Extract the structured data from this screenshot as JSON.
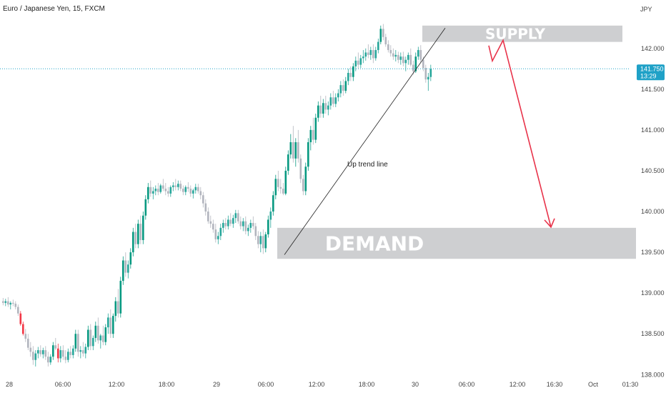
{
  "chart_data": {
    "type": "candlestick",
    "title": "Euro / Japanese Yen, 15, FXCM",
    "currency": "JPY",
    "ylim": [
      137.95,
      142.55
    ],
    "y_ticks": [
      "142.000",
      "141.500",
      "141.000",
      "140.500",
      "140.000",
      "139.500",
      "139.000",
      "138.500",
      "138.000"
    ],
    "x_ticks": [
      "28",
      "06:00",
      "12:00",
      "18:00",
      "29",
      "06:00",
      "12:00",
      "18:00",
      "30",
      "06:00",
      "12:00",
      "16:30",
      "Oct",
      "01:30"
    ],
    "last_price": "141.750",
    "countdown": "13:29",
    "zones": [
      {
        "name": "SUPPLY",
        "low": 142.08,
        "high": 142.28
      },
      {
        "name": "DEMAND",
        "low": 139.42,
        "high": 139.8
      }
    ],
    "annotations": [
      "Up trend line"
    ],
    "trendline": {
      "from": 139.47,
      "to": 142.25
    },
    "projection": {
      "from": 142.0,
      "pullback": 142.1,
      "to": 139.8
    },
    "colors": {
      "up": "#26a69a",
      "up_strong": "#089981",
      "down": "#b2b5be",
      "down_strong": "#f23645",
      "projection": "#e8334a",
      "zone": "#c9cacc",
      "price_line": "#23a6c7",
      "price_tag": "#1fa1c7"
    },
    "candles": [
      {
        "o": 138.9,
        "h": 138.94,
        "l": 138.85,
        "c": 138.88
      },
      {
        "o": 138.88,
        "h": 138.93,
        "l": 138.84,
        "c": 138.9
      },
      {
        "o": 138.9,
        "h": 138.95,
        "l": 138.83,
        "c": 138.86
      },
      {
        "o": 138.86,
        "h": 138.9,
        "l": 138.8,
        "c": 138.88
      },
      {
        "o": 138.88,
        "h": 138.92,
        "l": 138.84,
        "c": 138.87
      },
      {
        "o": 138.87,
        "h": 138.9,
        "l": 138.8,
        "c": 138.83
      },
      {
        "o": 138.83,
        "h": 138.86,
        "l": 138.72,
        "c": 138.75
      },
      {
        "o": 138.75,
        "h": 138.78,
        "l": 138.6,
        "c": 138.62
      },
      {
        "o": 138.62,
        "h": 138.65,
        "l": 138.48,
        "c": 138.5
      },
      {
        "o": 138.5,
        "h": 138.56,
        "l": 138.4,
        "c": 138.44
      },
      {
        "o": 138.44,
        "h": 138.5,
        "l": 138.3,
        "c": 138.33
      },
      {
        "o": 138.33,
        "h": 138.4,
        "l": 138.22,
        "c": 138.28
      },
      {
        "o": 138.28,
        "h": 138.35,
        "l": 138.12,
        "c": 138.18
      },
      {
        "o": 138.18,
        "h": 138.3,
        "l": 138.1,
        "c": 138.26
      },
      {
        "o": 138.26,
        "h": 138.34,
        "l": 138.2,
        "c": 138.3
      },
      {
        "o": 138.3,
        "h": 138.36,
        "l": 138.22,
        "c": 138.25
      },
      {
        "o": 138.25,
        "h": 138.33,
        "l": 138.2,
        "c": 138.3
      },
      {
        "o": 138.3,
        "h": 138.35,
        "l": 138.18,
        "c": 138.22
      },
      {
        "o": 138.22,
        "h": 138.28,
        "l": 138.1,
        "c": 138.15
      },
      {
        "o": 138.15,
        "h": 138.25,
        "l": 138.12,
        "c": 138.22
      },
      {
        "o": 138.22,
        "h": 138.4,
        "l": 138.18,
        "c": 138.36
      },
      {
        "o": 138.36,
        "h": 138.45,
        "l": 138.3,
        "c": 138.32
      },
      {
        "o": 138.32,
        "h": 138.38,
        "l": 138.15,
        "c": 138.2
      },
      {
        "o": 138.2,
        "h": 138.35,
        "l": 138.15,
        "c": 138.3
      },
      {
        "o": 138.3,
        "h": 138.36,
        "l": 138.18,
        "c": 138.22
      },
      {
        "o": 138.22,
        "h": 138.3,
        "l": 138.14,
        "c": 138.18
      },
      {
        "o": 138.18,
        "h": 138.32,
        "l": 138.15,
        "c": 138.28
      },
      {
        "o": 138.28,
        "h": 138.35,
        "l": 138.2,
        "c": 138.24
      },
      {
        "o": 138.24,
        "h": 138.36,
        "l": 138.2,
        "c": 138.32
      },
      {
        "o": 138.32,
        "h": 138.55,
        "l": 138.28,
        "c": 138.5
      },
      {
        "o": 138.5,
        "h": 138.55,
        "l": 138.22,
        "c": 138.28
      },
      {
        "o": 138.28,
        "h": 138.35,
        "l": 138.2,
        "c": 138.3
      },
      {
        "o": 138.3,
        "h": 138.4,
        "l": 138.22,
        "c": 138.26
      },
      {
        "o": 138.26,
        "h": 138.38,
        "l": 138.2,
        "c": 138.34
      },
      {
        "o": 138.34,
        "h": 138.6,
        "l": 138.3,
        "c": 138.55
      },
      {
        "o": 138.55,
        "h": 138.62,
        "l": 138.3,
        "c": 138.35
      },
      {
        "o": 138.35,
        "h": 138.48,
        "l": 138.3,
        "c": 138.45
      },
      {
        "o": 138.45,
        "h": 138.65,
        "l": 138.4,
        "c": 138.6
      },
      {
        "o": 138.6,
        "h": 138.7,
        "l": 138.38,
        "c": 138.42
      },
      {
        "o": 138.42,
        "h": 138.5,
        "l": 138.32,
        "c": 138.48
      },
      {
        "o": 138.48,
        "h": 138.6,
        "l": 138.36,
        "c": 138.4
      },
      {
        "o": 138.4,
        "h": 138.62,
        "l": 138.36,
        "c": 138.58
      },
      {
        "o": 138.58,
        "h": 138.75,
        "l": 138.5,
        "c": 138.7
      },
      {
        "o": 138.7,
        "h": 138.8,
        "l": 138.45,
        "c": 138.5
      },
      {
        "o": 138.5,
        "h": 138.75,
        "l": 138.45,
        "c": 138.72
      },
      {
        "o": 138.72,
        "h": 138.95,
        "l": 138.65,
        "c": 138.9
      },
      {
        "o": 138.9,
        "h": 139.05,
        "l": 138.7,
        "c": 138.75
      },
      {
        "o": 138.75,
        "h": 139.2,
        "l": 138.7,
        "c": 139.15
      },
      {
        "o": 139.15,
        "h": 139.45,
        "l": 139.1,
        "c": 139.4
      },
      {
        "o": 139.4,
        "h": 139.5,
        "l": 139.2,
        "c": 139.25
      },
      {
        "o": 139.25,
        "h": 139.4,
        "l": 139.18,
        "c": 139.35
      },
      {
        "o": 139.35,
        "h": 139.55,
        "l": 139.3,
        "c": 139.5
      },
      {
        "o": 139.5,
        "h": 139.8,
        "l": 139.45,
        "c": 139.75
      },
      {
        "o": 139.75,
        "h": 139.85,
        "l": 139.55,
        "c": 139.6
      },
      {
        "o": 139.6,
        "h": 139.9,
        "l": 139.55,
        "c": 139.85
      },
      {
        "o": 139.85,
        "h": 139.95,
        "l": 139.6,
        "c": 139.65
      },
      {
        "o": 139.65,
        "h": 140.0,
        "l": 139.6,
        "c": 139.95
      },
      {
        "o": 139.95,
        "h": 140.2,
        "l": 139.9,
        "c": 140.15
      },
      {
        "o": 140.15,
        "h": 140.35,
        "l": 140.1,
        "c": 140.3
      },
      {
        "o": 140.3,
        "h": 140.38,
        "l": 140.18,
        "c": 140.22
      },
      {
        "o": 140.22,
        "h": 140.3,
        "l": 140.15,
        "c": 140.25
      },
      {
        "o": 140.25,
        "h": 140.32,
        "l": 140.2,
        "c": 140.28
      },
      {
        "o": 140.28,
        "h": 140.35,
        "l": 140.2,
        "c": 140.24
      },
      {
        "o": 140.24,
        "h": 140.34,
        "l": 140.22,
        "c": 140.32
      },
      {
        "o": 140.32,
        "h": 140.4,
        "l": 140.25,
        "c": 140.28
      },
      {
        "o": 140.28,
        "h": 140.35,
        "l": 140.2,
        "c": 140.25
      },
      {
        "o": 140.25,
        "h": 140.3,
        "l": 140.18,
        "c": 140.22
      },
      {
        "o": 140.22,
        "h": 140.32,
        "l": 140.18,
        "c": 140.3
      },
      {
        "o": 140.3,
        "h": 140.36,
        "l": 140.25,
        "c": 140.32
      },
      {
        "o": 140.32,
        "h": 140.4,
        "l": 140.26,
        "c": 140.3
      },
      {
        "o": 140.3,
        "h": 140.38,
        "l": 140.26,
        "c": 140.34
      },
      {
        "o": 140.34,
        "h": 140.38,
        "l": 140.25,
        "c": 140.28
      },
      {
        "o": 140.28,
        "h": 140.32,
        "l": 140.2,
        "c": 140.24
      },
      {
        "o": 140.24,
        "h": 140.32,
        "l": 140.2,
        "c": 140.3
      },
      {
        "o": 140.3,
        "h": 140.36,
        "l": 140.24,
        "c": 140.28
      },
      {
        "o": 140.28,
        "h": 140.32,
        "l": 140.18,
        "c": 140.22
      },
      {
        "o": 140.22,
        "h": 140.28,
        "l": 140.16,
        "c": 140.26
      },
      {
        "o": 140.26,
        "h": 140.34,
        "l": 140.22,
        "c": 140.3
      },
      {
        "o": 140.3,
        "h": 140.34,
        "l": 140.22,
        "c": 140.25
      },
      {
        "o": 140.25,
        "h": 140.3,
        "l": 140.15,
        "c": 140.2
      },
      {
        "o": 140.2,
        "h": 140.24,
        "l": 140.05,
        "c": 140.1
      },
      {
        "o": 140.1,
        "h": 140.15,
        "l": 139.95,
        "c": 140.0
      },
      {
        "o": 140.0,
        "h": 140.05,
        "l": 139.85,
        "c": 139.88
      },
      {
        "o": 139.88,
        "h": 139.95,
        "l": 139.8,
        "c": 139.85
      },
      {
        "o": 139.85,
        "h": 139.9,
        "l": 139.74,
        "c": 139.78
      },
      {
        "o": 139.78,
        "h": 139.85,
        "l": 139.62,
        "c": 139.66
      },
      {
        "o": 139.66,
        "h": 139.75,
        "l": 139.6,
        "c": 139.7
      },
      {
        "o": 139.7,
        "h": 139.85,
        "l": 139.65,
        "c": 139.8
      },
      {
        "o": 139.8,
        "h": 139.9,
        "l": 139.74,
        "c": 139.86
      },
      {
        "o": 139.86,
        "h": 139.92,
        "l": 139.78,
        "c": 139.82
      },
      {
        "o": 139.82,
        "h": 139.95,
        "l": 139.78,
        "c": 139.9
      },
      {
        "o": 139.9,
        "h": 139.98,
        "l": 139.82,
        "c": 139.85
      },
      {
        "o": 139.85,
        "h": 139.96,
        "l": 139.8,
        "c": 139.92
      },
      {
        "o": 139.92,
        "h": 140.02,
        "l": 139.86,
        "c": 139.98
      },
      {
        "o": 139.98,
        "h": 140.02,
        "l": 139.85,
        "c": 139.88
      },
      {
        "o": 139.88,
        "h": 139.94,
        "l": 139.78,
        "c": 139.82
      },
      {
        "o": 139.82,
        "h": 139.92,
        "l": 139.76,
        "c": 139.88
      },
      {
        "o": 139.88,
        "h": 139.94,
        "l": 139.72,
        "c": 139.76
      },
      {
        "o": 139.76,
        "h": 139.84,
        "l": 139.7,
        "c": 139.8
      },
      {
        "o": 139.8,
        "h": 139.9,
        "l": 139.74,
        "c": 139.86
      },
      {
        "o": 139.86,
        "h": 139.94,
        "l": 139.78,
        "c": 139.82
      },
      {
        "o": 139.82,
        "h": 139.86,
        "l": 139.65,
        "c": 139.7
      },
      {
        "o": 139.7,
        "h": 139.76,
        "l": 139.55,
        "c": 139.6
      },
      {
        "o": 139.6,
        "h": 139.75,
        "l": 139.5,
        "c": 139.7
      },
      {
        "o": 139.7,
        "h": 139.78,
        "l": 139.48,
        "c": 139.55
      },
      {
        "o": 139.55,
        "h": 139.75,
        "l": 139.5,
        "c": 139.72
      },
      {
        "o": 139.72,
        "h": 139.95,
        "l": 139.68,
        "c": 139.9
      },
      {
        "o": 139.9,
        "h": 140.05,
        "l": 139.8,
        "c": 140.0
      },
      {
        "o": 140.0,
        "h": 140.25,
        "l": 139.95,
        "c": 140.2
      },
      {
        "o": 140.2,
        "h": 140.45,
        "l": 140.15,
        "c": 140.4
      },
      {
        "o": 140.4,
        "h": 140.5,
        "l": 140.25,
        "c": 140.3
      },
      {
        "o": 140.3,
        "h": 140.4,
        "l": 140.22,
        "c": 140.28
      },
      {
        "o": 140.28,
        "h": 140.35,
        "l": 140.2,
        "c": 140.22
      },
      {
        "o": 140.22,
        "h": 140.55,
        "l": 140.2,
        "c": 140.5
      },
      {
        "o": 140.5,
        "h": 140.75,
        "l": 140.45,
        "c": 140.7
      },
      {
        "o": 140.7,
        "h": 140.95,
        "l": 140.65,
        "c": 140.85
      },
      {
        "o": 140.85,
        "h": 141.05,
        "l": 140.6,
        "c": 140.65
      },
      {
        "o": 140.65,
        "h": 140.9,
        "l": 140.55,
        "c": 140.85
      },
      {
        "o": 140.85,
        "h": 141.0,
        "l": 140.6,
        "c": 140.65
      },
      {
        "o": 140.65,
        "h": 140.7,
        "l": 140.35,
        "c": 140.4
      },
      {
        "o": 140.4,
        "h": 140.45,
        "l": 140.2,
        "c": 140.25
      },
      {
        "o": 140.25,
        "h": 140.6,
        "l": 140.2,
        "c": 140.55
      },
      {
        "o": 140.55,
        "h": 140.9,
        "l": 140.5,
        "c": 140.85
      },
      {
        "o": 140.85,
        "h": 141.05,
        "l": 140.75,
        "c": 141.0
      },
      {
        "o": 141.0,
        "h": 141.15,
        "l": 140.82,
        "c": 140.88
      },
      {
        "o": 140.88,
        "h": 141.2,
        "l": 140.84,
        "c": 141.15
      },
      {
        "o": 141.15,
        "h": 141.35,
        "l": 141.1,
        "c": 141.3
      },
      {
        "o": 141.3,
        "h": 141.42,
        "l": 141.15,
        "c": 141.2
      },
      {
        "o": 141.2,
        "h": 141.38,
        "l": 141.15,
        "c": 141.33
      },
      {
        "o": 141.33,
        "h": 141.42,
        "l": 141.2,
        "c": 141.25
      },
      {
        "o": 141.25,
        "h": 141.35,
        "l": 141.18,
        "c": 141.3
      },
      {
        "o": 141.3,
        "h": 141.45,
        "l": 141.25,
        "c": 141.4
      },
      {
        "o": 141.4,
        "h": 141.48,
        "l": 141.28,
        "c": 141.32
      },
      {
        "o": 141.32,
        "h": 141.45,
        "l": 141.28,
        "c": 141.4
      },
      {
        "o": 141.4,
        "h": 141.5,
        "l": 141.35,
        "c": 141.45
      },
      {
        "o": 141.45,
        "h": 141.6,
        "l": 141.4,
        "c": 141.55
      },
      {
        "o": 141.55,
        "h": 141.62,
        "l": 141.42,
        "c": 141.48
      },
      {
        "o": 141.48,
        "h": 141.65,
        "l": 141.45,
        "c": 141.6
      },
      {
        "o": 141.6,
        "h": 141.75,
        "l": 141.55,
        "c": 141.7
      },
      {
        "o": 141.7,
        "h": 141.78,
        "l": 141.6,
        "c": 141.65
      },
      {
        "o": 141.65,
        "h": 141.82,
        "l": 141.6,
        "c": 141.78
      },
      {
        "o": 141.78,
        "h": 141.9,
        "l": 141.72,
        "c": 141.85
      },
      {
        "o": 141.85,
        "h": 141.95,
        "l": 141.75,
        "c": 141.8
      },
      {
        "o": 141.8,
        "h": 141.92,
        "l": 141.76,
        "c": 141.88
      },
      {
        "o": 141.88,
        "h": 141.98,
        "l": 141.82,
        "c": 141.9
      },
      {
        "o": 141.9,
        "h": 142.0,
        "l": 141.85,
        "c": 141.95
      },
      {
        "o": 141.95,
        "h": 142.05,
        "l": 141.88,
        "c": 141.92
      },
      {
        "o": 141.92,
        "h": 142.02,
        "l": 141.86,
        "c": 141.98
      },
      {
        "o": 141.98,
        "h": 142.05,
        "l": 141.82,
        "c": 141.88
      },
      {
        "o": 141.88,
        "h": 142.02,
        "l": 141.85,
        "c": 141.98
      },
      {
        "o": 141.98,
        "h": 142.12,
        "l": 141.94,
        "c": 142.08
      },
      {
        "o": 142.08,
        "h": 142.28,
        "l": 142.05,
        "c": 142.24
      },
      {
        "o": 142.24,
        "h": 142.3,
        "l": 142.1,
        "c": 142.14
      },
      {
        "o": 142.14,
        "h": 142.18,
        "l": 142.02,
        "c": 142.05
      },
      {
        "o": 142.05,
        "h": 142.1,
        "l": 141.95,
        "c": 141.98
      },
      {
        "o": 141.98,
        "h": 142.04,
        "l": 141.9,
        "c": 141.94
      },
      {
        "o": 141.94,
        "h": 142.0,
        "l": 141.86,
        "c": 141.9
      },
      {
        "o": 141.9,
        "h": 141.98,
        "l": 141.84,
        "c": 141.92
      },
      {
        "o": 141.92,
        "h": 141.96,
        "l": 141.82,
        "c": 141.86
      },
      {
        "o": 141.86,
        "h": 141.95,
        "l": 141.8,
        "c": 141.9
      },
      {
        "o": 141.9,
        "h": 141.96,
        "l": 141.78,
        "c": 141.82
      },
      {
        "o": 141.82,
        "h": 141.9,
        "l": 141.72,
        "c": 141.86
      },
      {
        "o": 141.86,
        "h": 141.95,
        "l": 141.8,
        "c": 141.92
      },
      {
        "o": 141.92,
        "h": 142.0,
        "l": 141.78,
        "c": 141.8
      },
      {
        "o": 141.8,
        "h": 141.85,
        "l": 141.68,
        "c": 141.72
      },
      {
        "o": 141.72,
        "h": 141.95,
        "l": 141.7,
        "c": 141.9
      },
      {
        "o": 141.9,
        "h": 142.02,
        "l": 141.86,
        "c": 141.98
      },
      {
        "o": 141.98,
        "h": 142.04,
        "l": 141.82,
        "c": 141.86
      },
      {
        "o": 141.86,
        "h": 141.9,
        "l": 141.72,
        "c": 141.76
      },
      {
        "o": 141.76,
        "h": 141.8,
        "l": 141.58,
        "c": 141.62
      },
      {
        "o": 141.62,
        "h": 141.7,
        "l": 141.48,
        "c": 141.65
      },
      {
        "o": 141.65,
        "h": 141.8,
        "l": 141.6,
        "c": 141.75
      }
    ]
  }
}
